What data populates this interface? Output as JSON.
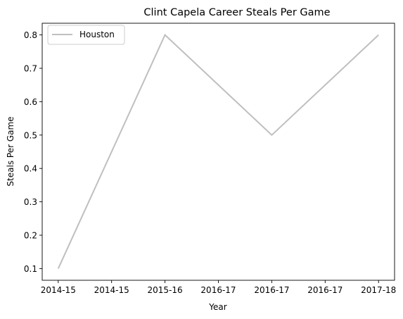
{
  "chart_data": {
    "type": "line",
    "title": "Clint Capela Career Steals Per Game",
    "xlabel": "Year",
    "ylabel": "Steals Per Game",
    "x_tick_labels": [
      "2014-15",
      "2014-15",
      "2015-16",
      "2016-17",
      "2016-17",
      "2016-17",
      "2017-18"
    ],
    "x": [
      0,
      2,
      4,
      6
    ],
    "x_labels": [
      "2014-15",
      "2015-16",
      "2016-17",
      "2017-18"
    ],
    "xlim": [
      -0.3,
      6.3
    ],
    "ylim": [
      0.065,
      0.835
    ],
    "y_ticks": [
      0.1,
      0.2,
      0.3,
      0.4,
      0.5,
      0.6,
      0.7,
      0.8
    ],
    "y_tick_labels": [
      "0.1",
      "0.2",
      "0.3",
      "0.4",
      "0.5",
      "0.6",
      "0.7",
      "0.8"
    ],
    "grid": false,
    "legend_position": "upper-left",
    "series": [
      {
        "name": "Houston",
        "values": [
          0.1,
          0.8,
          0.5,
          0.8
        ],
        "color": "#bfbfbf"
      }
    ]
  }
}
